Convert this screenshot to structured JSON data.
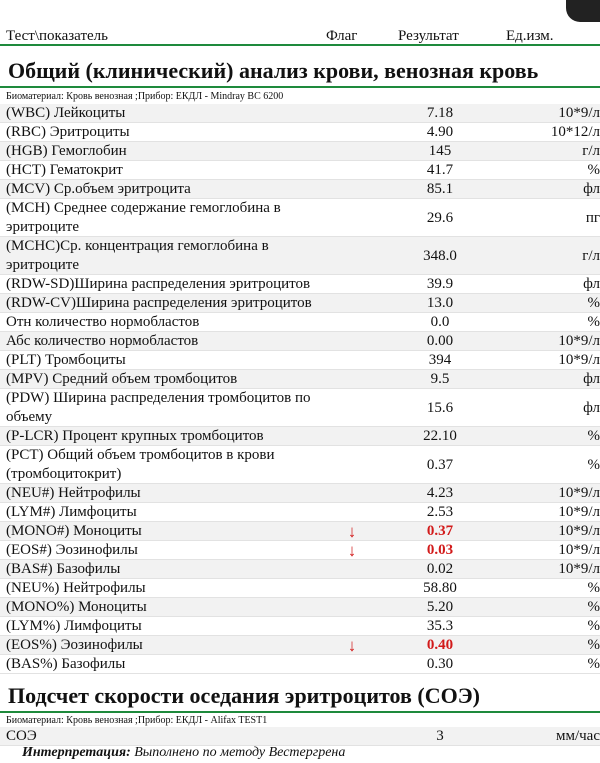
{
  "columns": {
    "test": "Тест\\показатель",
    "flag": "Флаг",
    "result": "Результат",
    "unit": "Ед.изм."
  },
  "cbc": {
    "title": "Общий (клинический) анализ крови, венозная кровь",
    "meta": "Биоматериал: Кровь венозная ;Прибор: ЕКДЛ - Mindray BC 6200",
    "rows": [
      {
        "name": "(WBC) Лейкоциты",
        "flag": "",
        "result": "7.18",
        "unit": "10*9/л"
      },
      {
        "name": "(RBC) Эритроциты",
        "flag": "",
        "result": "4.90",
        "unit": "10*12/л"
      },
      {
        "name": "(HGB) Гемоглобин",
        "flag": "",
        "result": "145",
        "unit": "г/л"
      },
      {
        "name": "(HCT) Гематокрит",
        "flag": "",
        "result": "41.7",
        "unit": "%"
      },
      {
        "name": "(MCV) Ср.объем эритроцита",
        "flag": "",
        "result": "85.1",
        "unit": "фл"
      },
      {
        "name": "(MCH) Среднее содержание гемоглобина в эритроците",
        "flag": "",
        "result": "29.6",
        "unit": "пг"
      },
      {
        "name": "(MCHC)Ср. концентрация гемоглобина в эритроците",
        "flag": "",
        "result": "348.0",
        "unit": "г/л"
      },
      {
        "name": "(RDW-SD)Ширина распределения эритроцитов",
        "flag": "",
        "result": "39.9",
        "unit": "фл"
      },
      {
        "name": "(RDW-CV)Ширина распределения эритроцитов",
        "flag": "",
        "result": "13.0",
        "unit": "%"
      },
      {
        "name": "Отн количество нормобластов",
        "flag": "",
        "result": "0.0",
        "unit": "%"
      },
      {
        "name": "Абс количество нормобластов",
        "flag": "",
        "result": "0.00",
        "unit": "10*9/л"
      },
      {
        "name": "(PLT) Тромбоциты",
        "flag": "",
        "result": "394",
        "unit": "10*9/л"
      },
      {
        "name": "(MPV) Средний объем тромбоцитов",
        "flag": "",
        "result": "9.5",
        "unit": "фл"
      },
      {
        "name": "(PDW) Ширина распределения тромбоцитов по объему",
        "flag": "",
        "result": "15.6",
        "unit": "фл"
      },
      {
        "name": "(P-LCR) Процент крупных тромбоцитов",
        "flag": "",
        "result": "22.10",
        "unit": "%"
      },
      {
        "name": "(PCT) Общий объем тромбоцитов в крови (тромбоцитокрит)",
        "flag": "",
        "result": "0.37",
        "unit": "%"
      },
      {
        "name": "(NEU#) Нейтрофилы",
        "flag": "",
        "result": "4.23",
        "unit": "10*9/л"
      },
      {
        "name": "(LYM#) Лимфоциты",
        "flag": "",
        "result": "2.53",
        "unit": "10*9/л"
      },
      {
        "name": "(MONO#) Моноциты",
        "flag": "↓",
        "result": "0.37",
        "unit": "10*9/л"
      },
      {
        "name": "(EOS#) Эозинофилы",
        "flag": "↓",
        "result": "0.03",
        "unit": "10*9/л"
      },
      {
        "name": "(BAS#) Базофилы",
        "flag": "",
        "result": "0.02",
        "unit": "10*9/л"
      },
      {
        "name": "(NEU%) Нейтрофилы",
        "flag": "",
        "result": "58.80",
        "unit": "%"
      },
      {
        "name": "(MONO%) Моноциты",
        "flag": "",
        "result": "5.20",
        "unit": "%"
      },
      {
        "name": "(LYM%) Лимфоциты",
        "flag": "",
        "result": "35.3",
        "unit": "%"
      },
      {
        "name": "(EOS%) Эозинофилы",
        "flag": "↓",
        "result": "0.40",
        "unit": "%"
      },
      {
        "name": "(BAS%) Базофилы",
        "flag": "",
        "result": "0.30",
        "unit": "%"
      }
    ]
  },
  "esr": {
    "title": "Подсчет скорости оседания эритроцитов (СОЭ)",
    "meta": "Биоматериал: Кровь венозная ;Прибор: ЕКДЛ - Alifax TEST1",
    "rows": [
      {
        "name": "СОЭ",
        "flag": "",
        "result": "3",
        "unit": "мм/час"
      }
    ],
    "interpretation_label": "Интерпретация:",
    "interpretation_text": "Выполнено по методу Вестергрена"
  },
  "colors": {
    "accent": "#1e8a3c",
    "flag_low": "#d21a1a"
  }
}
